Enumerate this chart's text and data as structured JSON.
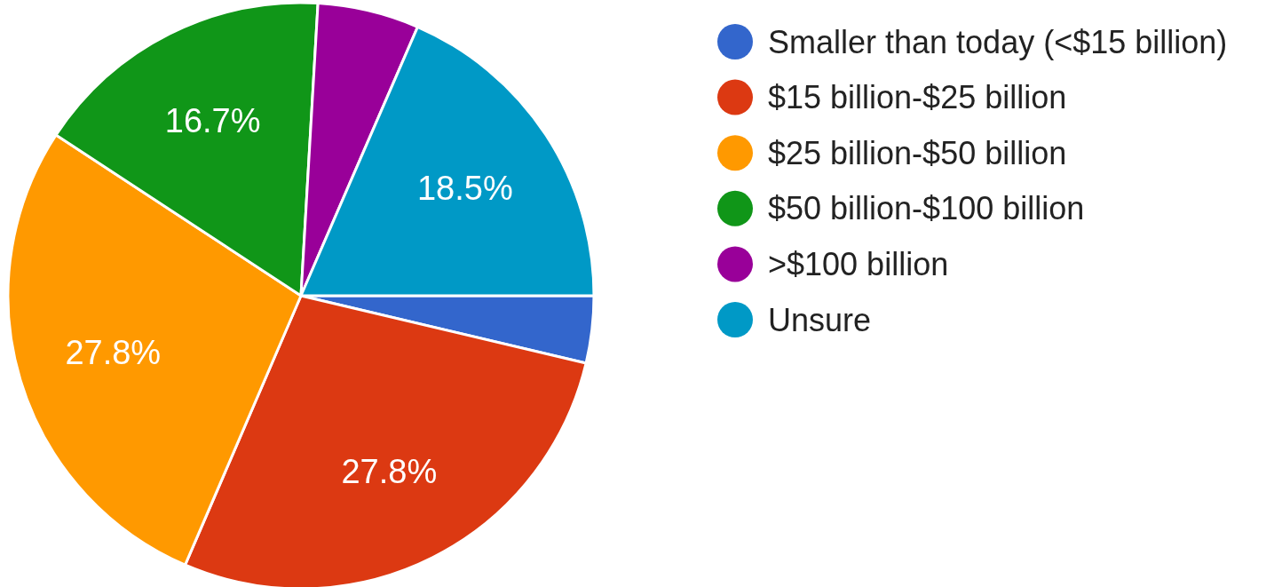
{
  "chart_data": {
    "type": "pie",
    "categories": [
      "Smaller than today (<$15 billion)",
      "$15 billion-$25 billion",
      "$25 billion-$50 billion",
      "$50 billion-$100 billion",
      ">$100 billion",
      "Unsure"
    ],
    "values": [
      3.7,
      27.8,
      27.8,
      16.7,
      5.6,
      18.5
    ],
    "value_labels": [
      null,
      "27.8%",
      "27.8%",
      "16.7%",
      null,
      "18.5%"
    ],
    "colors": [
      "#3366cc",
      "#dc3912",
      "#ff9900",
      "#109618",
      "#990099",
      "#0099c6"
    ],
    "legend": "right"
  }
}
